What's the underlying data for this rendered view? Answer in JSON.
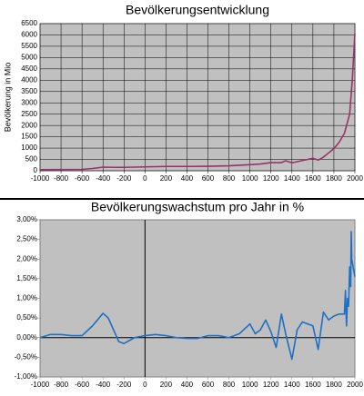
{
  "chart_data": [
    {
      "type": "line",
      "title": "Bevölkerungsentwicklung",
      "y_label": "Bevölkerung in Mio",
      "x": [
        -1000,
        -800,
        -600,
        -500,
        -400,
        -300,
        -200,
        0,
        200,
        400,
        600,
        800,
        1000,
        1100,
        1200,
        1300,
        1340,
        1400,
        1500,
        1600,
        1650,
        1700,
        1750,
        1800,
        1850,
        1900,
        1950,
        1975,
        2000
      ],
      "series": [
        {
          "color": "#993366",
          "values": [
            50,
            55,
            60,
            100,
            160,
            150,
            150,
            170,
            190,
            190,
            200,
            220,
            270,
            300,
            360,
            360,
            440,
            350,
            450,
            550,
            470,
            600,
            790,
            980,
            1260,
            1650,
            2500,
            4000,
            6070
          ]
        }
      ],
      "xlim": [
        -1000,
        2000
      ],
      "xticks": [
        -1000,
        -800,
        -600,
        -400,
        -200,
        0,
        200,
        400,
        600,
        800,
        1000,
        1200,
        1400,
        1600,
        1800,
        2000
      ],
      "ylim": [
        0,
        6500
      ],
      "yticks": [
        0,
        500,
        1000,
        1500,
        2000,
        2500,
        3000,
        3500,
        4000,
        4500,
        5000,
        5500,
        6000,
        6500
      ],
      "grid": true
    },
    {
      "type": "line",
      "title": "Bevölkerungswachstum pro Jahr in %",
      "x": [
        -1000,
        -900,
        -800,
        -700,
        -600,
        -500,
        -400,
        -350,
        -300,
        -250,
        -200,
        -100,
        0,
        100,
        200,
        300,
        400,
        500,
        600,
        700,
        800,
        900,
        1000,
        1050,
        1100,
        1150,
        1200,
        1250,
        1300,
        1340,
        1400,
        1450,
        1500,
        1550,
        1600,
        1650,
        1700,
        1750,
        1800,
        1850,
        1900,
        1910,
        1920,
        1930,
        1940,
        1950,
        1960,
        1965,
        1970,
        1980,
        2000
      ],
      "series": [
        {
          "color": "#1f6fc5",
          "values": [
            0.0,
            0.08,
            0.08,
            0.05,
            0.05,
            0.3,
            0.62,
            0.5,
            0.2,
            -0.1,
            -0.15,
            0.0,
            0.05,
            0.08,
            0.05,
            0.0,
            -0.02,
            -0.02,
            0.05,
            0.05,
            0.0,
            0.1,
            0.35,
            0.1,
            0.2,
            0.45,
            0.15,
            -0.25,
            0.6,
            0.1,
            -0.55,
            0.2,
            0.4,
            0.35,
            0.3,
            -0.3,
            0.65,
            0.45,
            0.55,
            0.6,
            0.6,
            1.2,
            0.3,
            1.0,
            0.8,
            1.8,
            1.3,
            2.7,
            2.0,
            1.85,
            1.55
          ]
        }
      ],
      "xlim": [
        -1000,
        2000
      ],
      "xticks": [
        -1000,
        -800,
        -600,
        -400,
        -200,
        0,
        200,
        400,
        600,
        800,
        1000,
        1200,
        1400,
        1600,
        1800,
        2000
      ],
      "ylim": [
        -1,
        3
      ],
      "yticks": [
        {
          "value": -1,
          "label": "-1,00%"
        },
        {
          "value": -0.5,
          "label": "-0,50%"
        },
        {
          "value": 0,
          "label": "0,00%"
        },
        {
          "value": 0.5,
          "label": "0,50%"
        },
        {
          "value": 1,
          "label": "1,00%"
        },
        {
          "value": 1.5,
          "label": "1,50%"
        },
        {
          "value": 2,
          "label": "2,00%"
        },
        {
          "value": 2.5,
          "label": "2,50%"
        },
        {
          "value": 3,
          "label": "3,00%"
        }
      ],
      "grid": false,
      "zero_lines": true
    }
  ]
}
